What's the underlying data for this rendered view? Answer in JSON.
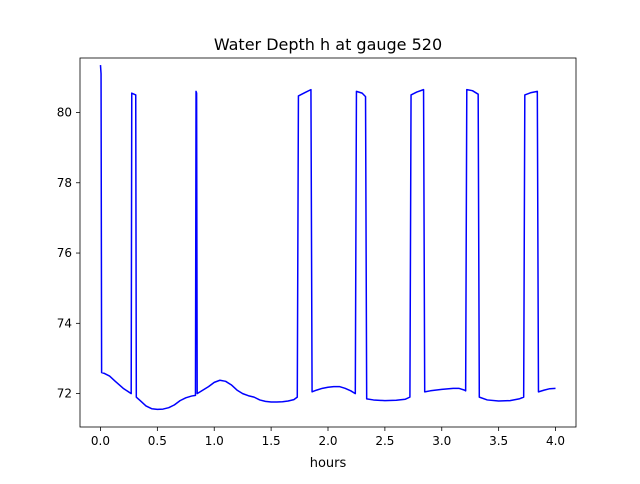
{
  "chart_data": {
    "type": "line",
    "title": "Water Depth h at gauge 520",
    "xlabel": "hours",
    "ylabel": "",
    "xlim": [
      -0.18,
      4.18
    ],
    "ylim": [
      71.05,
      81.55
    ],
    "xticks": [
      0.0,
      0.5,
      1.0,
      1.5,
      2.0,
      2.5,
      3.0,
      3.5,
      4.0
    ],
    "xtick_labels": [
      "0.0",
      "0.5",
      "1.0",
      "1.5",
      "2.0",
      "2.5",
      "3.0",
      "3.5",
      "4.0"
    ],
    "yticks": [
      72,
      74,
      76,
      78,
      80
    ],
    "ytick_labels": [
      "72",
      "74",
      "76",
      "78",
      "80"
    ],
    "grid": false,
    "series": [
      {
        "color": "#0000ff",
        "points": [
          [
            0.0,
            81.35
          ],
          [
            0.005,
            81.1
          ],
          [
            0.01,
            72.6
          ],
          [
            0.03,
            72.58
          ],
          [
            0.08,
            72.5
          ],
          [
            0.13,
            72.35
          ],
          [
            0.2,
            72.15
          ],
          [
            0.27,
            72.0
          ],
          [
            0.275,
            80.55
          ],
          [
            0.31,
            80.5
          ],
          [
            0.315,
            71.9
          ],
          [
            0.35,
            71.8
          ],
          [
            0.4,
            71.65
          ],
          [
            0.45,
            71.57
          ],
          [
            0.5,
            71.55
          ],
          [
            0.55,
            71.56
          ],
          [
            0.6,
            71.6
          ],
          [
            0.65,
            71.68
          ],
          [
            0.7,
            71.8
          ],
          [
            0.75,
            71.88
          ],
          [
            0.8,
            71.93
          ],
          [
            0.835,
            71.95
          ],
          [
            0.84,
            80.6
          ],
          [
            0.845,
            80.55
          ],
          [
            0.85,
            72.0
          ],
          [
            0.9,
            72.1
          ],
          [
            0.95,
            72.2
          ],
          [
            1.0,
            72.32
          ],
          [
            1.05,
            72.38
          ],
          [
            1.1,
            72.35
          ],
          [
            1.15,
            72.25
          ],
          [
            1.2,
            72.1
          ],
          [
            1.25,
            72.0
          ],
          [
            1.3,
            71.94
          ],
          [
            1.35,
            71.9
          ],
          [
            1.4,
            71.82
          ],
          [
            1.45,
            71.78
          ],
          [
            1.5,
            71.76
          ],
          [
            1.55,
            71.76
          ],
          [
            1.6,
            71.77
          ],
          [
            1.65,
            71.79
          ],
          [
            1.7,
            71.83
          ],
          [
            1.73,
            71.9
          ],
          [
            1.74,
            80.47
          ],
          [
            1.8,
            80.57
          ],
          [
            1.85,
            80.65
          ],
          [
            1.86,
            72.05
          ],
          [
            1.9,
            72.1
          ],
          [
            1.95,
            72.15
          ],
          [
            2.0,
            72.18
          ],
          [
            2.05,
            72.2
          ],
          [
            2.1,
            72.2
          ],
          [
            2.15,
            72.15
          ],
          [
            2.2,
            72.08
          ],
          [
            2.24,
            72.0
          ],
          [
            2.25,
            80.6
          ],
          [
            2.3,
            80.55
          ],
          [
            2.33,
            80.45
          ],
          [
            2.34,
            71.85
          ],
          [
            2.4,
            71.82
          ],
          [
            2.5,
            71.8
          ],
          [
            2.6,
            71.81
          ],
          [
            2.68,
            71.84
          ],
          [
            2.72,
            71.9
          ],
          [
            2.73,
            80.5
          ],
          [
            2.78,
            80.58
          ],
          [
            2.84,
            80.65
          ],
          [
            2.85,
            72.05
          ],
          [
            2.9,
            72.08
          ],
          [
            3.0,
            72.12
          ],
          [
            3.1,
            72.15
          ],
          [
            3.15,
            72.15
          ],
          [
            3.2,
            72.1
          ],
          [
            3.21,
            72.08
          ],
          [
            3.22,
            80.65
          ],
          [
            3.27,
            80.62
          ],
          [
            3.32,
            80.52
          ],
          [
            3.33,
            71.9
          ],
          [
            3.4,
            71.82
          ],
          [
            3.5,
            71.79
          ],
          [
            3.6,
            71.8
          ],
          [
            3.68,
            71.85
          ],
          [
            3.72,
            71.9
          ],
          [
            3.73,
            80.5
          ],
          [
            3.78,
            80.56
          ],
          [
            3.84,
            80.6
          ],
          [
            3.85,
            72.05
          ],
          [
            3.9,
            72.1
          ],
          [
            3.95,
            72.14
          ],
          [
            4.0,
            72.15
          ]
        ]
      }
    ]
  }
}
